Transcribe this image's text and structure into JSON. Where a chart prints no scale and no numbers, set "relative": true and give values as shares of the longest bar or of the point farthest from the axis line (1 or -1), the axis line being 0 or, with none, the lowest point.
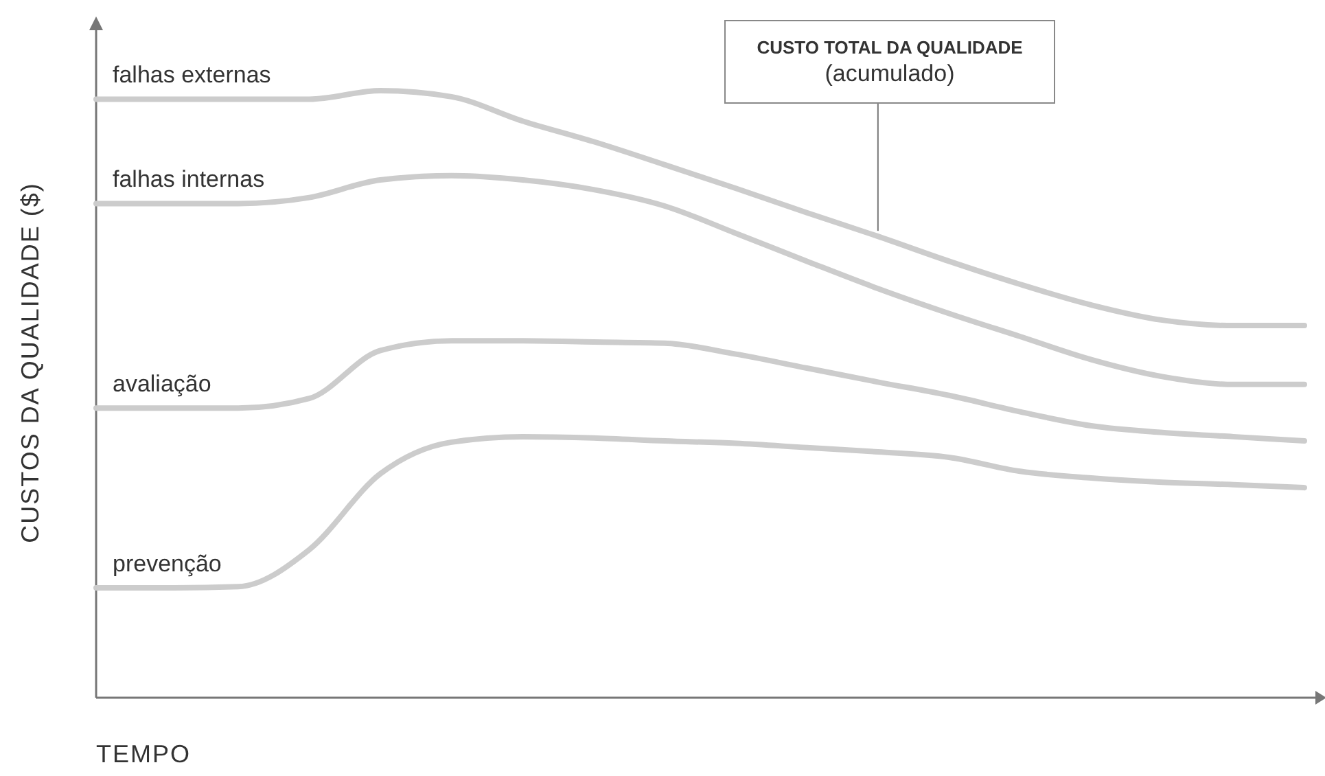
{
  "chart_data": {
    "type": "line",
    "relative": true,
    "ylabel": "CUSTOS DA QUALIDADE ($)",
    "xlabel": "TEMPO",
    "legend": false,
    "marker": "none",
    "line_style": "solid",
    "categories": [
      null,
      null,
      null,
      null,
      null,
      null,
      null,
      null,
      null,
      null,
      null,
      null,
      null,
      null,
      null,
      null,
      null,
      null
    ],
    "annotations": [
      "CUSTO TOTAL DA QUALIDADE\n(acumulado)"
    ],
    "series": [
      {
        "name": "falhas externas",
        "color": "#cccccc",
        "values": [
          0.986,
          0.986,
          0.986,
          0.986,
          1.0,
          0.99,
          0.95,
          0.916,
          0.878,
          0.839,
          0.799,
          0.76,
          0.719,
          0.681,
          0.647,
          0.622,
          0.613,
          0.613
        ]
      },
      {
        "name": "falhas internas",
        "color": "#cccccc",
        "values": [
          0.814,
          0.814,
          0.814,
          0.824,
          0.853,
          0.86,
          0.853,
          0.837,
          0.81,
          0.765,
          0.719,
          0.674,
          0.633,
          0.595,
          0.557,
          0.529,
          0.516,
          0.516
        ]
      },
      {
        "name": "avaliação",
        "color": "#cccccc",
        "values": [
          0.477,
          0.477,
          0.477,
          0.493,
          0.572,
          0.588,
          0.588,
          0.586,
          0.584,
          0.566,
          0.543,
          0.52,
          0.498,
          0.471,
          0.448,
          0.437,
          0.43,
          0.423
        ]
      },
      {
        "name": "prevenção",
        "color": "#cccccc",
        "values": [
          0.181,
          0.181,
          0.183,
          0.244,
          0.369,
          0.421,
          0.43,
          0.428,
          0.423,
          0.419,
          0.412,
          0.405,
          0.396,
          0.373,
          0.362,
          0.355,
          0.351,
          0.346
        ]
      }
    ]
  }
}
